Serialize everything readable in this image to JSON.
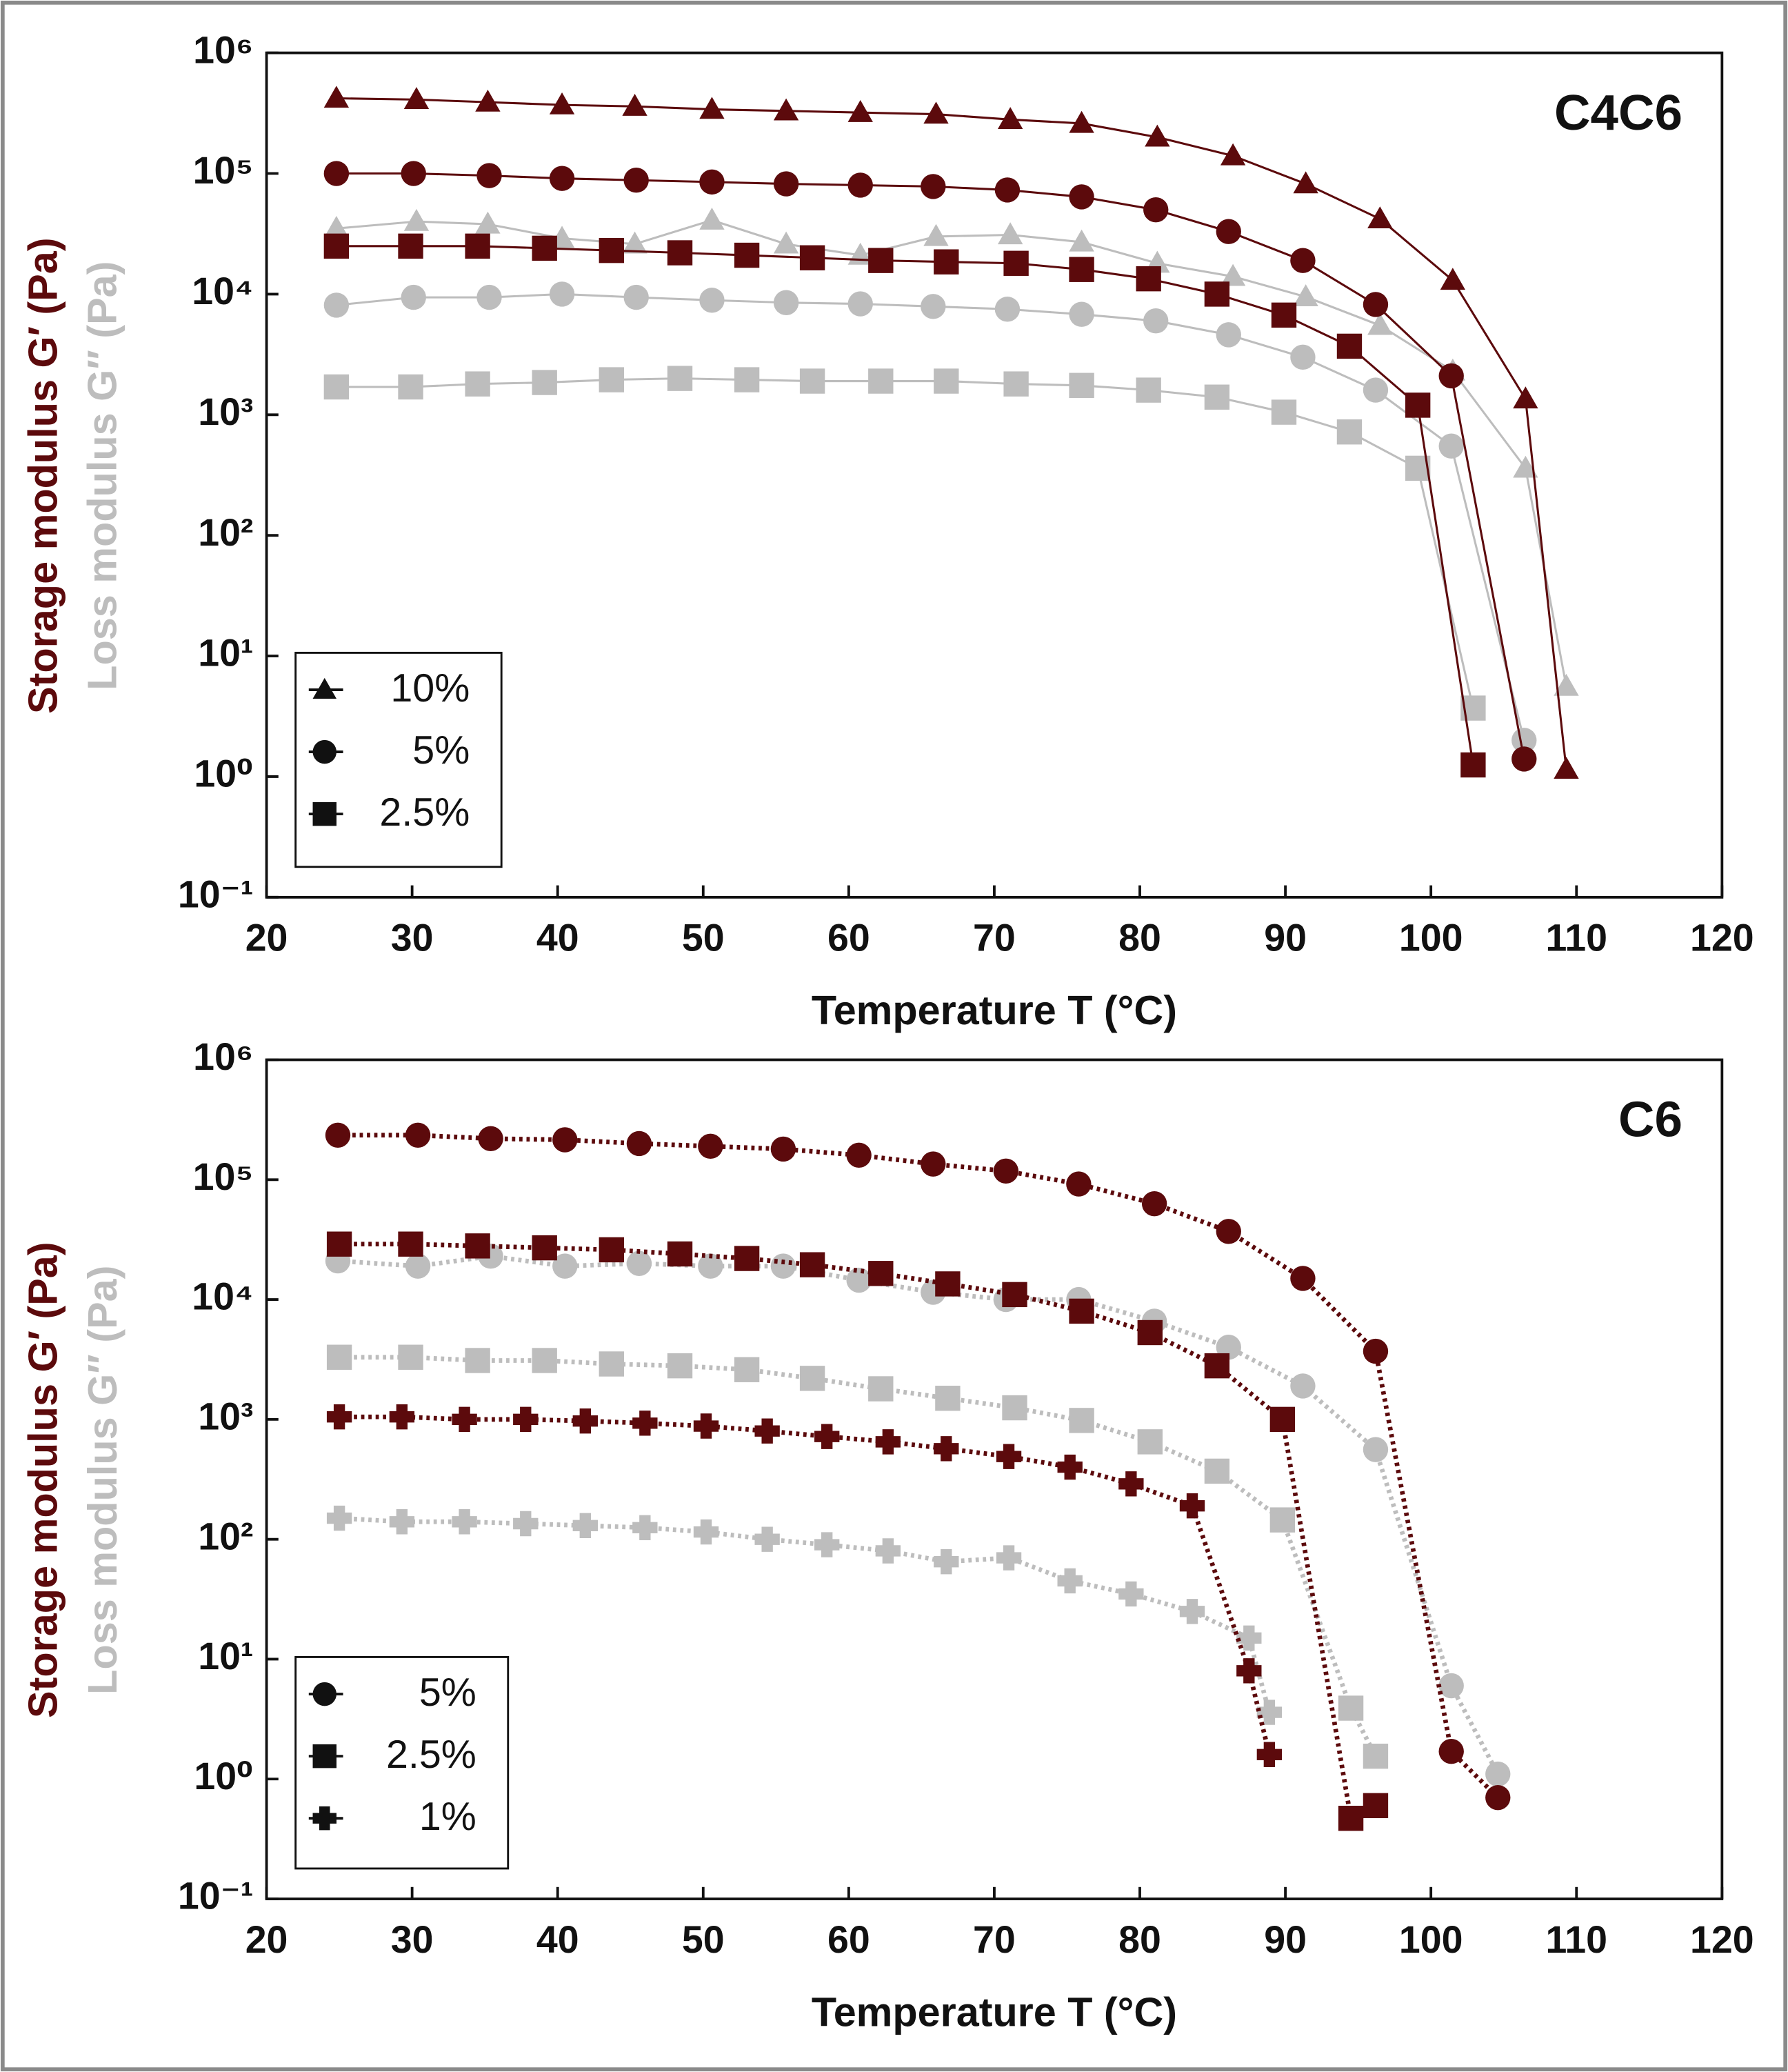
{
  "chart_data": [
    {
      "type": "line",
      "title": "C4C6",
      "xlabel": "Temperature T (°C)",
      "ylabel": "Storage modulus G′ (Pa)",
      "ylabel2": "Loss modulus G″ (Pa)",
      "storage_color": "#5c0a0c",
      "loss_color": "#bdbdbd",
      "line_style": "solid",
      "yscale": "log",
      "legend": "lower left",
      "xlim": [
        20,
        120
      ],
      "xticks": [
        20,
        30,
        40,
        50,
        60,
        70,
        80,
        90,
        100,
        110,
        120
      ],
      "ylim": [
        0.1,
        1000000
      ],
      "yticks": [
        {
          "value": 0.1,
          "label": "10⁻¹"
        },
        {
          "value": 1,
          "label": "10⁰"
        },
        {
          "value": 10,
          "label": "10¹"
        },
        {
          "value": 100,
          "label": "10²"
        },
        {
          "value": 1000,
          "label": "10³"
        },
        {
          "value": 10000,
          "label": "10⁴"
        },
        {
          "value": 100000,
          "label": "10⁵"
        },
        {
          "value": 1000000,
          "label": "10⁶"
        }
      ],
      "series": [
        {
          "name": "10%",
          "marker": "triangle",
          "x": [
            24.8,
            30.3,
            35.2,
            40.3,
            45.3,
            50.6,
            55.7,
            60.8,
            66.0,
            71.1,
            76.0,
            81.2,
            86.4,
            91.4,
            96.5,
            101.5,
            106.5,
            109.3
          ],
          "storage": [
            420000,
            410000,
            390000,
            370000,
            360000,
            340000,
            330000,
            320000,
            310000,
            280000,
            260000,
            200000,
            140000,
            82000,
            42000,
            13000,
            1350,
            1.15
          ],
          "loss": [
            35000,
            40000,
            38000,
            29000,
            26000,
            41000,
            26000,
            21000,
            30000,
            31000,
            27000,
            18000,
            14000,
            9500,
            5500,
            2300,
            360,
            5.6
          ]
        },
        {
          "name": "5%",
          "marker": "circle",
          "x": [
            24.8,
            30.1,
            35.3,
            40.3,
            45.4,
            50.6,
            55.7,
            60.8,
            65.8,
            70.9,
            76.0,
            81.1,
            86.1,
            91.2,
            96.2,
            101.4,
            106.4
          ],
          "storage": [
            100000,
            100000,
            96000,
            91000,
            88000,
            85000,
            82000,
            80000,
            78000,
            73000,
            64000,
            50000,
            33000,
            19000,
            8200,
            2100,
            1.4
          ],
          "loss": [
            8100,
            9400,
            9400,
            10000,
            9400,
            8900,
            8500,
            8300,
            7900,
            7500,
            6800,
            6000,
            4600,
            3000,
            1600,
            550,
            2.0
          ]
        },
        {
          "name": "2.5%",
          "marker": "square",
          "x": [
            24.8,
            29.9,
            34.5,
            39.1,
            43.7,
            48.4,
            53.0,
            57.5,
            62.2,
            66.7,
            71.5,
            76.0,
            80.6,
            85.3,
            89.9,
            94.4,
            99.1,
            102.9
          ],
          "storage": [
            25000,
            25000,
            25000,
            24000,
            23000,
            22000,
            21000,
            20000,
            19000,
            18500,
            18000,
            16000,
            13400,
            10000,
            6700,
            3700,
            1200,
            1.25
          ],
          "loss": [
            1700,
            1700,
            1800,
            1850,
            1950,
            2000,
            1950,
            1900,
            1900,
            1900,
            1800,
            1750,
            1600,
            1400,
            1050,
            720,
            360,
            3.7
          ]
        }
      ]
    },
    {
      "type": "line",
      "title": "C6",
      "xlabel": "Temperature T (°C)",
      "ylabel": "Storage modulus G′ (Pa)",
      "ylabel2": "Loss modulus G″ (Pa)",
      "storage_color": "#5c0a0c",
      "loss_color": "#bdbdbd",
      "line_style": "dotted",
      "yscale": "log",
      "legend": "lower left",
      "xlim": [
        20,
        120
      ],
      "xticks": [
        20,
        30,
        40,
        50,
        60,
        70,
        80,
        90,
        100,
        110,
        120
      ],
      "ylim": [
        0.1,
        1000000
      ],
      "yticks": [
        {
          "value": 0.1,
          "label": "10⁻¹"
        },
        {
          "value": 1,
          "label": "10⁰"
        },
        {
          "value": 10,
          "label": "10¹"
        },
        {
          "value": 100,
          "label": "10²"
        },
        {
          "value": 1000,
          "label": "10³"
        },
        {
          "value": 10000,
          "label": "10⁴"
        },
        {
          "value": 100000,
          "label": "10⁵"
        },
        {
          "value": 1000000,
          "label": "10⁶"
        }
      ],
      "series": [
        {
          "name": "5%",
          "marker": "circle",
          "x": [
            24.9,
            30.4,
            35.4,
            40.5,
            45.6,
            50.5,
            55.5,
            60.7,
            65.8,
            70.8,
            75.8,
            81.0,
            86.1,
            91.2,
            96.2,
            101.4,
            104.6
          ],
          "storage": [
            235000,
            235000,
            220000,
            215000,
            200000,
            190000,
            180000,
            160000,
            135000,
            118000,
            92000,
            63000,
            37000,
            15000,
            3700,
            1.7,
            0.7
          ],
          "loss": [
            21000,
            19000,
            23000,
            19000,
            20000,
            19000,
            19000,
            14500,
            11500,
            10000,
            10000,
            6600,
            4000,
            1900,
            560,
            6,
            1.1
          ]
        },
        {
          "name": "2.5%",
          "marker": "square",
          "x": [
            25.0,
            29.9,
            34.5,
            39.1,
            43.7,
            48.4,
            53.0,
            57.5,
            62.2,
            66.8,
            71.4,
            76.0,
            80.7,
            85.3,
            89.8,
            94.5,
            96.2
          ],
          "storage": [
            29000,
            29000,
            28000,
            27000,
            26000,
            24000,
            22000,
            19500,
            16500,
            13500,
            11000,
            8000,
            5300,
            2800,
            1000,
            0.47,
            0.6
          ],
          "loss": [
            3300,
            3300,
            3100,
            3100,
            2900,
            2800,
            2600,
            2200,
            1800,
            1500,
            1250,
            980,
            650,
            370,
            145,
            3.9,
            1.55
          ]
        },
        {
          "name": "1%",
          "marker": "plus",
          "x": [
            25.0,
            29.3,
            33.6,
            37.8,
            41.9,
            46.0,
            50.2,
            54.4,
            58.5,
            62.7,
            66.7,
            71.0,
            75.2,
            79.4,
            83.6,
            87.5,
            88.9
          ],
          "storage": [
            1050,
            1050,
            1000,
            1000,
            970,
            930,
            880,
            800,
            720,
            650,
            570,
            490,
            400,
            290,
            190,
            8,
            1.6
          ],
          "loss": [
            150,
            140,
            140,
            135,
            130,
            125,
            115,
            100,
            90,
            80,
            65,
            70,
            45,
            35,
            25,
            15,
            3.6
          ]
        }
      ]
    }
  ]
}
